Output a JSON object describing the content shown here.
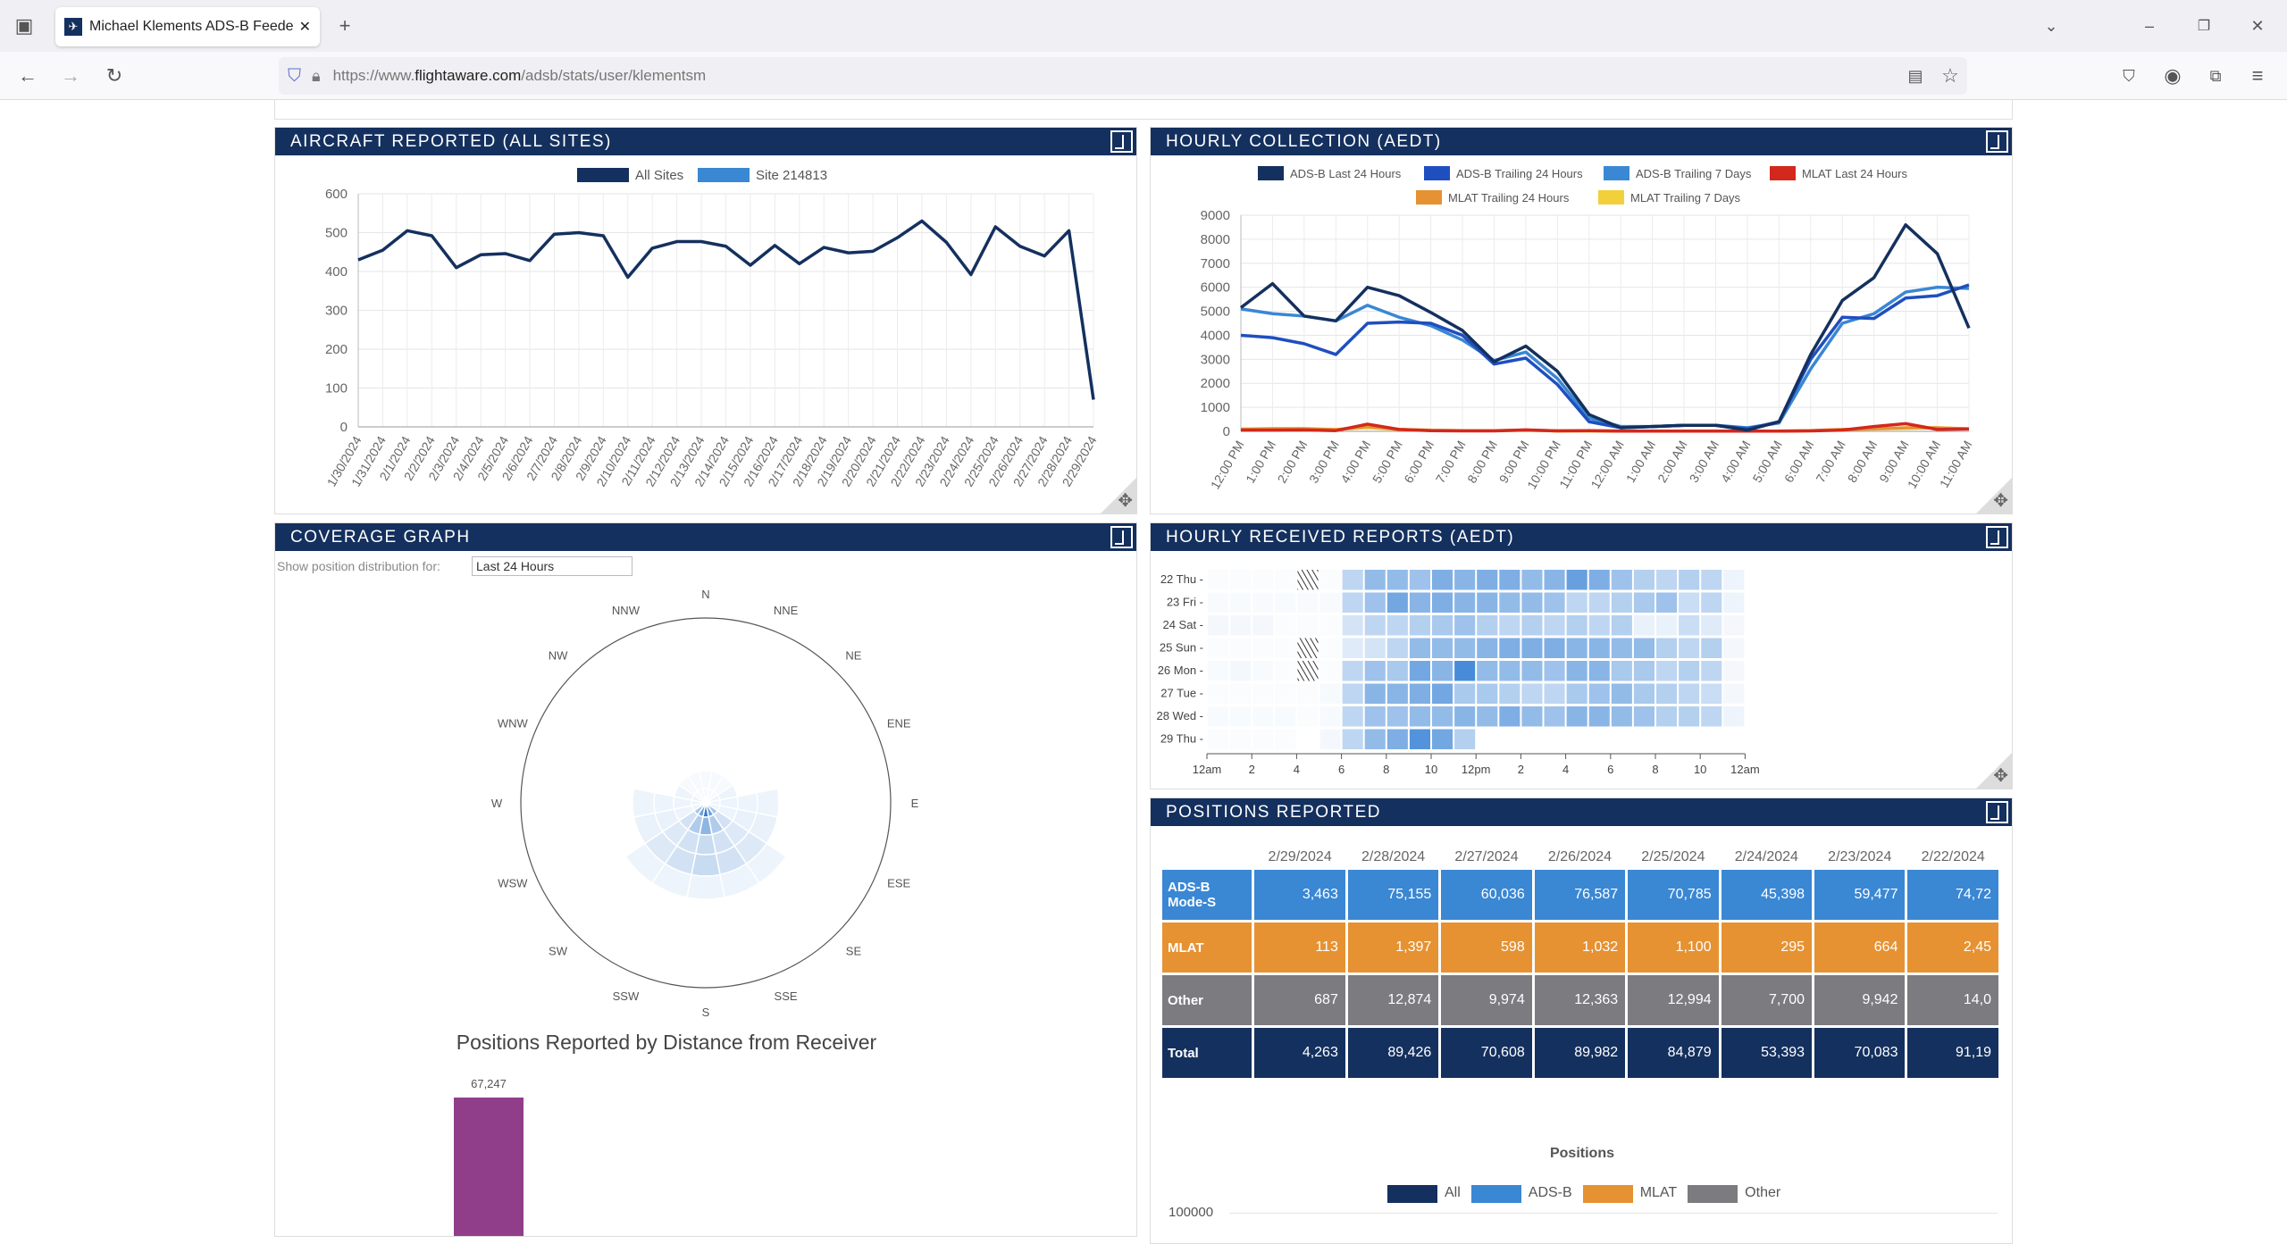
{
  "browser": {
    "tab_title": "Michael Klements ADS-B Feeder",
    "url_prefix": "https://www.",
    "url_domain": "flightaware.com",
    "url_path": "/adsb/stats/user/klementsm"
  },
  "colors": {
    "header": "#14305e",
    "adsb": "#3a87d4",
    "mlat": "#e69232",
    "other": "#7b7b80",
    "total": "#14305e",
    "bar": "#913e8a"
  },
  "aircraft": {
    "title": "AIRCRAFT REPORTED (ALL SITES)"
  },
  "hourly": {
    "title": "HOURLY COLLECTION (AEDT)"
  },
  "coverage": {
    "title": "COVERAGE GRAPH",
    "filter_label": "Show position distribution for:",
    "filter_value": "Last 24 Hours",
    "directions": [
      "N",
      "NNE",
      "NE",
      "ENE",
      "E",
      "ESE",
      "SE",
      "SSE",
      "S",
      "SSW",
      "SW",
      "WSW",
      "W",
      "WNW",
      "NW",
      "NNW"
    ],
    "distance_title": "Positions Reported by Distance from Receiver",
    "bar_label": "67,247"
  },
  "heatmap": {
    "title": "HOURLY RECEIVED REPORTS (AEDT)",
    "rows": [
      "22 Thu -",
      "23 Fri -",
      "24 Sat -",
      "25 Sun -",
      "26 Mon -",
      "27 Tue -",
      "28 Wed -",
      "29 Thu -"
    ],
    "xticks": [
      "12am",
      "2",
      "4",
      "6",
      "8",
      "10",
      "12pm",
      "2",
      "4",
      "6",
      "8",
      "10",
      "12am"
    ],
    "values": [
      [
        0.02,
        0.02,
        0.02,
        0.02,
        -1,
        0.02,
        0.3,
        0.5,
        0.5,
        0.45,
        0.6,
        0.55,
        0.6,
        0.6,
        0.5,
        0.55,
        0.7,
        0.6,
        0.45,
        0.35,
        0.3,
        0.35,
        0.3,
        0.08
      ],
      [
        0.03,
        0.03,
        0.03,
        0.03,
        0.03,
        0.03,
        0.3,
        0.45,
        0.65,
        0.55,
        0.6,
        0.55,
        0.55,
        0.5,
        0.5,
        0.45,
        0.3,
        0.3,
        0.35,
        0.4,
        0.45,
        0.25,
        0.3,
        0.08
      ],
      [
        0.05,
        0.05,
        0.05,
        0.02,
        0.02,
        0.02,
        0.2,
        0.3,
        0.3,
        0.35,
        0.4,
        0.45,
        0.35,
        0.3,
        0.35,
        0.3,
        0.35,
        0.3,
        0.35,
        0.1,
        0.1,
        0.25,
        0.15,
        0.05
      ],
      [
        0.02,
        0.02,
        0.02,
        0.02,
        -1,
        0.02,
        0.15,
        0.2,
        0.3,
        0.5,
        0.5,
        0.5,
        0.55,
        0.6,
        0.6,
        0.6,
        0.55,
        0.55,
        0.5,
        0.5,
        0.35,
        0.3,
        0.35,
        0.05
      ],
      [
        0.03,
        0.05,
        0.03,
        0.02,
        -1,
        0.02,
        0.3,
        0.45,
        0.4,
        0.65,
        0.55,
        0.85,
        0.5,
        0.5,
        0.5,
        0.45,
        0.55,
        0.55,
        0.4,
        0.4,
        0.3,
        0.35,
        0.3,
        0.05
      ],
      [
        0.02,
        0.02,
        0.02,
        0.02,
        0.02,
        0.04,
        0.3,
        0.55,
        0.55,
        0.6,
        0.65,
        0.4,
        0.4,
        0.35,
        0.3,
        0.3,
        0.4,
        0.45,
        0.5,
        0.4,
        0.35,
        0.3,
        0.25,
        0.05
      ],
      [
        0.03,
        0.03,
        0.03,
        0.03,
        0.02,
        0.04,
        0.3,
        0.45,
        0.45,
        0.5,
        0.5,
        0.55,
        0.5,
        0.6,
        0.5,
        0.45,
        0.55,
        0.55,
        0.5,
        0.45,
        0.35,
        0.35,
        0.3,
        0.08
      ],
      [
        0.02,
        0.02,
        0.02,
        0.02,
        0,
        0.05,
        0.3,
        0.5,
        0.6,
        0.8,
        0.65,
        0.35
      ]
    ]
  },
  "positions": {
    "title": "POSITIONS REPORTED",
    "dates": [
      "2/29/2024",
      "2/28/2024",
      "2/27/2024",
      "2/26/2024",
      "2/25/2024",
      "2/24/2024",
      "2/23/2024",
      "2/22/2024"
    ],
    "rows": [
      {
        "label": "ADS-B Mode-S",
        "values": [
          "3,463",
          "75,155",
          "60,036",
          "76,587",
          "70,785",
          "45,398",
          "59,477",
          "74,72"
        ]
      },
      {
        "label": "MLAT",
        "values": [
          "113",
          "1,397",
          "598",
          "1,032",
          "1,100",
          "295",
          "664",
          "2,45"
        ]
      },
      {
        "label": "Other",
        "values": [
          "687",
          "12,874",
          "9,974",
          "12,363",
          "12,994",
          "7,700",
          "9,942",
          "14,0"
        ]
      },
      {
        "label": "Total",
        "values": [
          "4,263",
          "89,426",
          "70,608",
          "89,982",
          "84,879",
          "53,393",
          "70,083",
          "91,19"
        ]
      }
    ],
    "chart_title": "Positions",
    "legend": [
      "All",
      "ADS-B",
      "MLAT",
      "Other"
    ],
    "ytick_top": "100000"
  },
  "chart_data": [
    {
      "type": "line",
      "title": "AIRCRAFT REPORTED (ALL SITES)",
      "ylim": [
        0,
        600
      ],
      "yticks": [
        0,
        100,
        200,
        300,
        400,
        500,
        600
      ],
      "grid": true,
      "legend": "top",
      "legend_entries": [
        {
          "name": "All Sites",
          "color": "#14305e"
        },
        {
          "name": "Site 214813",
          "color": "#3a87d4"
        }
      ],
      "x": [
        "1/30/2024",
        "1/31/2024",
        "2/1/2024",
        "2/2/2024",
        "2/3/2024",
        "2/4/2024",
        "2/5/2024",
        "2/6/2024",
        "2/7/2024",
        "2/8/2024",
        "2/9/2024",
        "2/10/2024",
        "2/11/2024",
        "2/12/2024",
        "2/13/2024",
        "2/14/2024",
        "2/15/2024",
        "2/16/2024",
        "2/17/2024",
        "2/18/2024",
        "2/19/2024",
        "2/20/2024",
        "2/21/2024",
        "2/22/2024",
        "2/23/2024",
        "2/24/2024",
        "2/25/2024",
        "2/26/2024",
        "2/27/2024",
        "2/28/2024",
        "2/29/2024"
      ],
      "series": [
        {
          "name": "All Sites",
          "color": "#14305e",
          "values": [
            430,
            455,
            505,
            492,
            410,
            443,
            446,
            428,
            496,
            500,
            492,
            385,
            460,
            477,
            477,
            465,
            416,
            467,
            420,
            462,
            448,
            452,
            487,
            530,
            475,
            392,
            515,
            465,
            440,
            505,
            70
          ]
        }
      ]
    },
    {
      "type": "line",
      "title": "HOURLY COLLECTION (AEDT)",
      "ylim": [
        0,
        9000
      ],
      "yticks": [
        0,
        1000,
        2000,
        3000,
        4000,
        5000,
        6000,
        7000,
        8000,
        9000
      ],
      "grid": true,
      "legend": "top",
      "x": [
        "12:00 PM",
        "1:00 PM",
        "2:00 PM",
        "3:00 PM",
        "4:00 PM",
        "5:00 PM",
        "6:00 PM",
        "7:00 PM",
        "8:00 PM",
        "9:00 PM",
        "10:00 PM",
        "11:00 PM",
        "12:00 AM",
        "1:00 AM",
        "2:00 AM",
        "3:00 AM",
        "4:00 AM",
        "5:00 AM",
        "6:00 AM",
        "7:00 AM",
        "8:00 AM",
        "9:00 AM",
        "10:00 AM",
        "11:00 AM"
      ],
      "series": [
        {
          "name": "MLAT Trailing 7 Days",
          "color": "#f2d03b",
          "values": [
            100,
            120,
            120,
            80,
            150,
            80,
            50,
            30,
            30,
            40,
            20,
            20,
            10,
            10,
            10,
            10,
            10,
            10,
            30,
            80,
            100,
            120,
            150,
            100
          ]
        },
        {
          "name": "MLAT Trailing 24 Hours",
          "color": "#e69232",
          "values": [
            80,
            100,
            100,
            70,
            200,
            80,
            40,
            30,
            30,
            50,
            20,
            20,
            10,
            10,
            10,
            10,
            10,
            10,
            30,
            80,
            100,
            150,
            150,
            100
          ]
        },
        {
          "name": "MLAT Last 24 Hours",
          "color": "#d3281c",
          "values": [
            50,
            50,
            60,
            30,
            300,
            80,
            30,
            20,
            20,
            60,
            20,
            30,
            10,
            10,
            10,
            10,
            10,
            10,
            20,
            50,
            200,
            320,
            80,
            100
          ]
        },
        {
          "name": "ADS-B Trailing 7 Days",
          "color": "#3a87d4",
          "values": [
            5100,
            4900,
            4800,
            4600,
            5250,
            4750,
            4400,
            3800,
            2950,
            3300,
            2200,
            550,
            200,
            200,
            250,
            250,
            150,
            350,
            2600,
            4500,
            4900,
            5800,
            6000,
            5950
          ]
        },
        {
          "name": "ADS-B Trailing 24 Hours",
          "color": "#1f4fbf",
          "values": [
            4000,
            3900,
            3650,
            3200,
            4500,
            4550,
            4500,
            4000,
            2800,
            3050,
            1950,
            400,
            150,
            200,
            250,
            250,
            100,
            400,
            3000,
            4750,
            4700,
            5550,
            5650,
            6100
          ]
        },
        {
          "name": "ADS-B Last 24 Hours",
          "color": "#14305e",
          "values": [
            5150,
            6150,
            4800,
            4600,
            6000,
            5650,
            4950,
            4200,
            2900,
            3550,
            2500,
            700,
            150,
            200,
            250,
            250,
            50,
            400,
            3200,
            5450,
            6400,
            8600,
            7400,
            4300
          ]
        }
      ],
      "legend_order": [
        "ADS-B Last 24 Hours",
        "ADS-B Trailing 24 Hours",
        "ADS-B Trailing 7 Days",
        "MLAT Last 24 Hours",
        "MLAT Trailing 24 Hours",
        "MLAT Trailing 7 Days"
      ]
    }
  ]
}
